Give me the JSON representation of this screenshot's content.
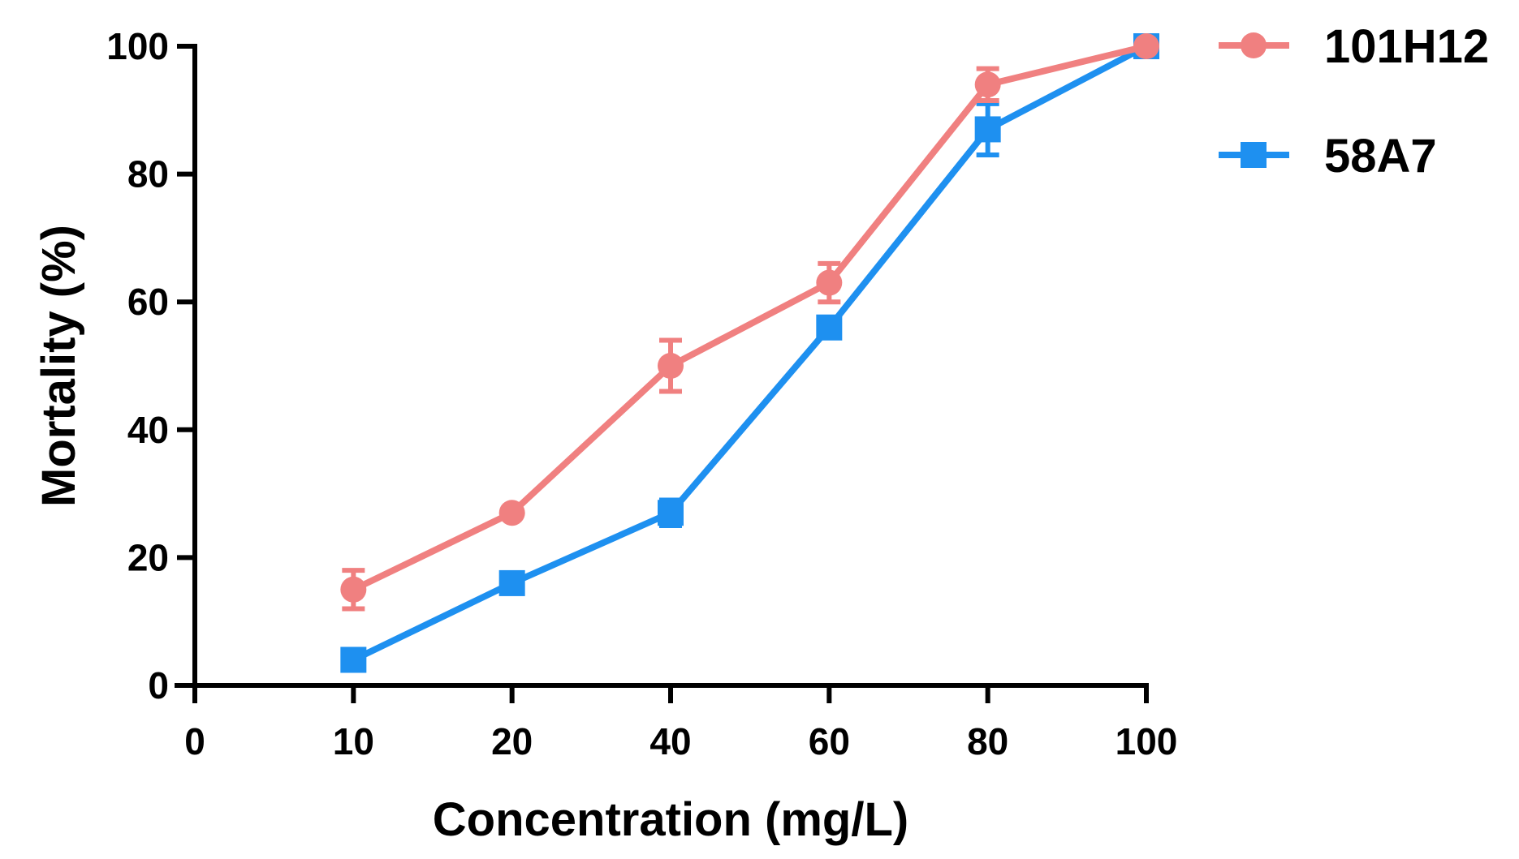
{
  "chart_data": {
    "type": "line",
    "title": "",
    "xlabel": "Concentration (mg/L)",
    "ylabel": "Mortality (%)",
    "categories": [
      "10",
      "20",
      "40",
      "60",
      "80",
      "100"
    ],
    "x_ticks": [
      "0",
      "10",
      "20",
      "40",
      "60",
      "80",
      "100"
    ],
    "y_ticks": [
      "0",
      "20",
      "40",
      "60",
      "80",
      "100"
    ],
    "ylim": [
      0,
      100
    ],
    "grid": false,
    "legend_position": "top-right",
    "series": [
      {
        "name": "101H12",
        "marker": "circle",
        "color": "#F08080",
        "values": [
          15,
          27,
          50,
          63,
          94,
          100
        ],
        "errors": [
          3,
          0,
          4,
          3,
          2.5,
          0
        ]
      },
      {
        "name": "58A7",
        "marker": "square",
        "color": "#1E90F0",
        "values": [
          4,
          16,
          27,
          56,
          87,
          100
        ],
        "errors": [
          0,
          0,
          2,
          0,
          4,
          0
        ]
      }
    ]
  }
}
